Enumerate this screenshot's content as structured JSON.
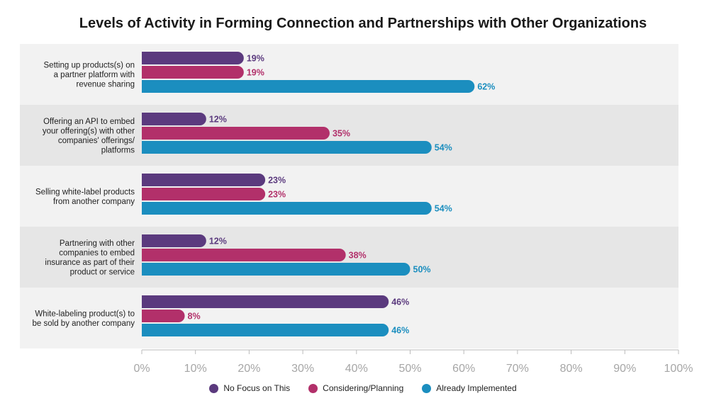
{
  "chart_data": {
    "type": "bar",
    "orientation": "horizontal",
    "title": "Levels of Activity in Forming Connection and Partnerships with Other Organizations",
    "categories": [
      [
        "Setting up products(s) on",
        "a partner platform with",
        "revenue sharing"
      ],
      [
        "Offering an API to embed",
        "your offering(s) with other",
        "companies' offerings/",
        "platforms"
      ],
      [
        "Selling white-label products",
        "from another company"
      ],
      [
        "Partnering with other",
        "companies to embed",
        "insurance as part of their",
        "product or service"
      ],
      [
        "White-labeling product(s) to",
        "be sold by another company"
      ]
    ],
    "series": [
      {
        "name": "No Focus on This",
        "color": "#5b3a7e",
        "values": [
          19,
          12,
          23,
          12,
          46
        ]
      },
      {
        "name": "Considering/Planning",
        "color": "#b2306a",
        "values": [
          19,
          35,
          23,
          38,
          8
        ]
      },
      {
        "name": "Already Implemented",
        "color": "#1b8ebf",
        "values": [
          62,
          54,
          54,
          50,
          46
        ]
      }
    ],
    "xlim": [
      0,
      100
    ],
    "xticks": [
      "0%",
      "10%",
      "20%",
      "30%",
      "40%",
      "50%",
      "60%",
      "70%",
      "80%",
      "90%",
      "100%"
    ],
    "value_suffix": "%",
    "legend_position": "bottom",
    "band_colors": [
      "#f2f2f2",
      "#e6e6e6"
    ]
  }
}
